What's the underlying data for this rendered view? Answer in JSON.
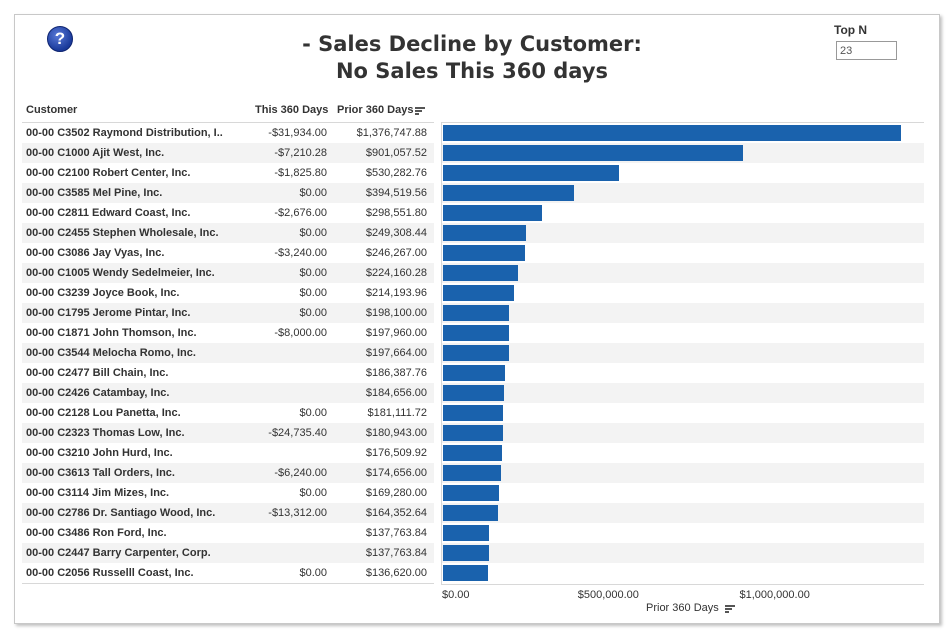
{
  "title_line1": "- Sales Decline by Customer:",
  "title_line2": "No Sales This 360 days",
  "help_symbol": "?",
  "top_n": {
    "label": "Top N",
    "value": "23"
  },
  "columns": {
    "customer": "Customer",
    "this": "This 360 Days",
    "prior": "Prior 360 Days"
  },
  "rows": [
    {
      "customer": "00-00  C3502  Raymond Distribution, I..",
      "this": "-$31,934.00",
      "prior": "$1,376,747.88"
    },
    {
      "customer": "00-00  C1000  Ajit West, Inc.",
      "this": "-$7,210.28",
      "prior": "$901,057.52"
    },
    {
      "customer": "00-00  C2100  Robert Center, Inc.",
      "this": "-$1,825.80",
      "prior": "$530,282.76"
    },
    {
      "customer": "00-00  C3585  Mel Pine, Inc.",
      "this": "$0.00",
      "prior": "$394,519.56"
    },
    {
      "customer": "00-00  C2811  Edward Coast, Inc.",
      "this": "-$2,676.00",
      "prior": "$298,551.80"
    },
    {
      "customer": "00-00  C2455  Stephen Wholesale, Inc.",
      "this": "$0.00",
      "prior": "$249,308.44"
    },
    {
      "customer": "00-00  C3086  Jay Vyas, Inc.",
      "this": "-$3,240.00",
      "prior": "$246,267.00"
    },
    {
      "customer": "00-00  C1005  Wendy Sedelmeier, Inc.",
      "this": "$0.00",
      "prior": "$224,160.28"
    },
    {
      "customer": "00-00  C3239  Joyce Book, Inc.",
      "this": "$0.00",
      "prior": "$214,193.96"
    },
    {
      "customer": "00-00  C1795  Jerome Pintar, Inc.",
      "this": "$0.00",
      "prior": "$198,100.00"
    },
    {
      "customer": "00-00  C1871  John Thomson, Inc.",
      "this": "-$8,000.00",
      "prior": "$197,960.00"
    },
    {
      "customer": "00-00  C3544  Melocha Romo, Inc.",
      "this": "",
      "prior": "$197,664.00"
    },
    {
      "customer": "00-00  C2477  Bill Chain, Inc.",
      "this": "",
      "prior": "$186,387.76"
    },
    {
      "customer": "00-00  C2426  Catambay, Inc.",
      "this": "",
      "prior": "$184,656.00"
    },
    {
      "customer": "00-00  C2128  Lou Panetta, Inc.",
      "this": "$0.00",
      "prior": "$181,111.72"
    },
    {
      "customer": "00-00  C2323  Thomas Low, Inc.",
      "this": "-$24,735.40",
      "prior": "$180,943.00"
    },
    {
      "customer": "00-00  C3210  John Hurd, Inc.",
      "this": "",
      "prior": "$176,509.92"
    },
    {
      "customer": "00-00  C3613  Tall Orders, Inc.",
      "this": "-$6,240.00",
      "prior": "$174,656.00"
    },
    {
      "customer": "00-00  C3114  Jim Mizes, Inc.",
      "this": "$0.00",
      "prior": "$169,280.00"
    },
    {
      "customer": "00-00  C2786  Dr. Santiago Wood, Inc.",
      "this": "-$13,312.00",
      "prior": "$164,352.64"
    },
    {
      "customer": "00-00  C3486  Ron Ford, Inc.",
      "this": "",
      "prior": "$137,763.84"
    },
    {
      "customer": "00-00  C2447  Barry Carpenter, Corp.",
      "this": "",
      "prior": "$137,763.84"
    },
    {
      "customer": "00-00  C2056  Russelll Coast, Inc.",
      "this": "$0.00",
      "prior": "$136,620.00"
    }
  ],
  "chart_data": {
    "type": "bar",
    "orientation": "horizontal",
    "xlabel": "Prior 360 Days",
    "xlim": [
      0,
      1480000
    ],
    "ticks": [
      {
        "value": 0,
        "label": "$0.00"
      },
      {
        "value": 500000,
        "label": "$500,000.00"
      },
      {
        "value": 1000000,
        "label": "$1,000,000.00"
      }
    ],
    "values": [
      1376747.88,
      901057.52,
      530282.76,
      394519.56,
      298551.8,
      249308.44,
      246267.0,
      224160.28,
      214193.96,
      198100.0,
      197960.0,
      197664.0,
      186387.76,
      184656.0,
      181111.72,
      180943.0,
      176509.92,
      174656.0,
      169280.0,
      164352.64,
      137763.84,
      137763.84,
      136620.0
    ],
    "bar_color": "#1a62ad"
  }
}
